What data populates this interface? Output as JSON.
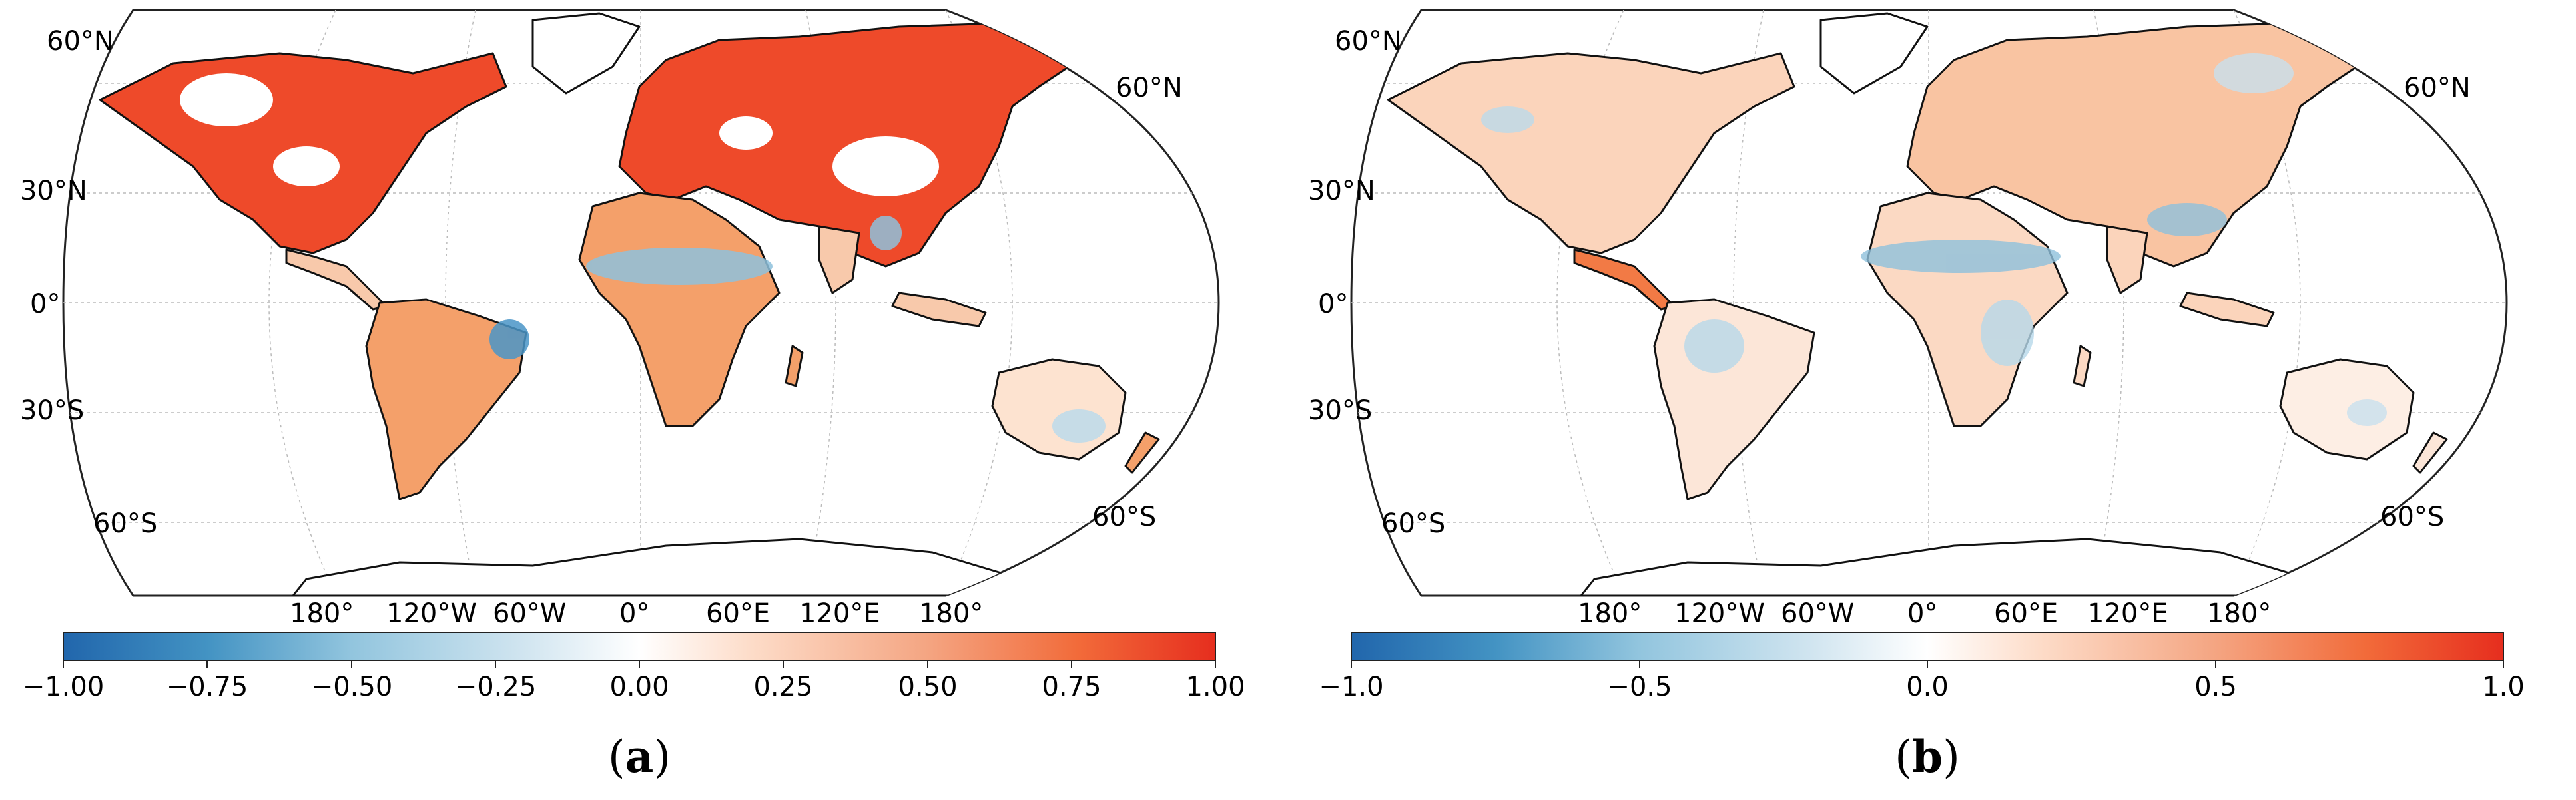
{
  "panels": [
    {
      "id": "a",
      "caption_letter": "a",
      "lat_labels_left": [
        "60°N",
        "30°N",
        "0°",
        "30°S",
        "60°S"
      ],
      "lat_labels_right": [
        "60°N",
        "60°S"
      ],
      "lon_labels": [
        "180°",
        "120°W",
        "60°W",
        "0°",
        "60°E",
        "120°E",
        "180°"
      ],
      "colorbar": {
        "min": -1.0,
        "max": 1.0,
        "ticks": [
          "−1.00",
          "−0.75",
          "−0.50",
          "−0.25",
          "0.00",
          "0.25",
          "0.50",
          "0.75",
          "1.00"
        ],
        "colors": [
          "#2166ac",
          "#4393c3",
          "#92c5de",
          "#d1e5f0",
          "#ffffff",
          "#fddbc7",
          "#f4a582",
          "#f26b3a",
          "#e62e1e"
        ]
      },
      "theme": "warm"
    },
    {
      "id": "b",
      "caption_letter": "b",
      "lat_labels_left": [
        "60°N",
        "30°N",
        "0°",
        "30°S",
        "60°S"
      ],
      "lat_labels_right": [
        "60°N",
        "60°S"
      ],
      "lon_labels": [
        "180°",
        "120°W",
        "60°W",
        "0°",
        "60°E",
        "120°E",
        "180°"
      ],
      "colorbar": {
        "min": -1.0,
        "max": 1.0,
        "ticks": [
          "−1.0",
          "−0.5",
          "0.0",
          "0.5",
          "1.0"
        ],
        "colors": [
          "#2166ac",
          "#4393c3",
          "#92c5de",
          "#d1e5f0",
          "#ffffff",
          "#fddbc7",
          "#f4a582",
          "#f26b3a",
          "#e62e1e"
        ]
      },
      "theme": "mixed"
    }
  ]
}
